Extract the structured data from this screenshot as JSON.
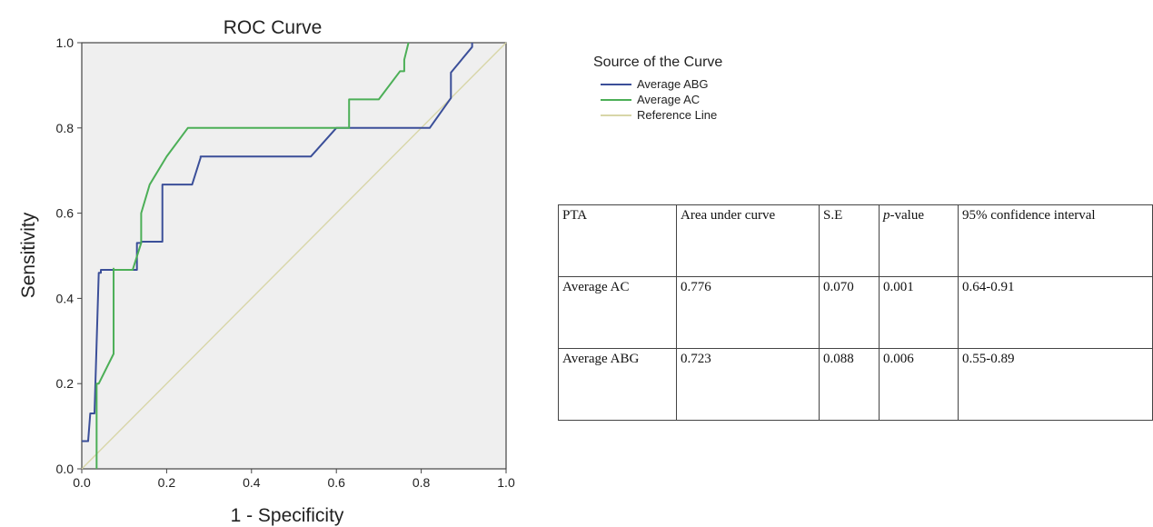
{
  "chart_data": {
    "type": "line",
    "title": "ROC Curve",
    "xlabel": "1 - Specificity",
    "ylabel": "Sensitivity",
    "xlim": [
      0.0,
      1.0
    ],
    "ylim": [
      0.0,
      1.0
    ],
    "xticks": [
      "0.0",
      "0.2",
      "0.4",
      "0.6",
      "0.8",
      "1.0"
    ],
    "yticks": [
      "0.0",
      "0.2",
      "0.4",
      "0.6",
      "0.8",
      "1.0"
    ],
    "grid": false,
    "legend_title": "Source of the Curve",
    "legend_position": "top-right",
    "series": [
      {
        "name": "Average ABG",
        "color": "#3b4f99",
        "x": [
          0.0,
          0.015,
          0.02,
          0.03,
          0.04,
          0.045,
          0.045,
          0.13,
          0.13,
          0.14,
          0.14,
          0.19,
          0.19,
          0.26,
          0.28,
          0.28,
          0.54,
          0.6,
          0.6,
          0.82,
          0.87,
          0.87,
          0.92,
          0.92
        ],
        "y": [
          0.065,
          0.065,
          0.13,
          0.13,
          0.46,
          0.46,
          0.467,
          0.467,
          0.53,
          0.53,
          0.533,
          0.533,
          0.667,
          0.667,
          0.73,
          0.733,
          0.733,
          0.8,
          0.8,
          0.8,
          0.87,
          0.93,
          0.99,
          1.0
        ]
      },
      {
        "name": "Average AC",
        "color": "#4caf57",
        "x": [
          0.035,
          0.035,
          0.04,
          0.075,
          0.075,
          0.075,
          0.12,
          0.14,
          0.14,
          0.16,
          0.2,
          0.25,
          0.61,
          0.63,
          0.63,
          0.7,
          0.75,
          0.76,
          0.76,
          0.77,
          0.77
        ],
        "y": [
          0.0,
          0.2,
          0.2,
          0.27,
          0.47,
          0.467,
          0.467,
          0.53,
          0.6,
          0.667,
          0.733,
          0.8,
          0.8,
          0.8,
          0.867,
          0.867,
          0.933,
          0.933,
          0.96,
          1.0,
          1.0
        ]
      },
      {
        "name": "Reference Line",
        "color": "#d8d6a8",
        "x": [
          0.0,
          1.0
        ],
        "y": [
          0.0,
          1.0
        ]
      }
    ]
  },
  "table": {
    "headers": [
      "PTA",
      "Area under curve",
      "S.E",
      "-value",
      "95% confidence interval"
    ],
    "p_prefix": "p",
    "rows": [
      [
        "Average AC",
        "0.776",
        "0.070",
        "0.001",
        "0.64-0.91"
      ],
      [
        "Average ABG",
        "0.723",
        "0.088",
        "0.006",
        "0.55-0.89"
      ]
    ]
  }
}
